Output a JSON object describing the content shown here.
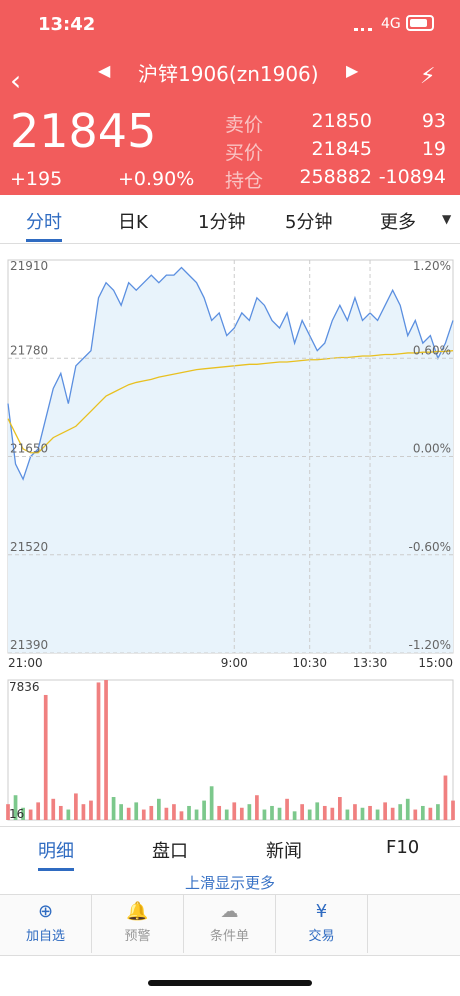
{
  "status_bar": {
    "time": "13:42",
    "network": "4G"
  },
  "header": {
    "title": "沪锌1906(zn1906)"
  },
  "quote": {
    "price": "21845",
    "change": "+195",
    "change_pct": "+0.90%",
    "rows": [
      [
        "卖价",
        "21850",
        "93"
      ],
      [
        "买价",
        "21845",
        "19"
      ],
      [
        "持仓",
        "258882",
        "-10894"
      ]
    ]
  },
  "tabs": {
    "items": [
      "分时",
      "日K",
      "1分钟",
      "5分钟",
      "更多"
    ],
    "active": 0
  },
  "chart_data": [
    {
      "type": "line",
      "xlim": [
        0,
        59
      ],
      "xticks": [
        {
          "value": 0,
          "label": "21:00"
        },
        {
          "value": 30,
          "label": "9:00"
        },
        {
          "value": 40,
          "label": "10:30"
        },
        {
          "value": 48,
          "label": "13:30"
        },
        {
          "value": 59,
          "label": "15:00"
        }
      ],
      "ylim": [
        21390,
        21910
      ],
      "yticks": [
        21910,
        21780,
        21650,
        21520,
        21390
      ],
      "y2lim": [
        -1.2,
        1.2
      ],
      "y2ticks": [
        {
          "value": 1.2,
          "label": "1.20%"
        },
        {
          "value": 0.6,
          "label": "0.60%"
        },
        {
          "value": 0,
          "label": "0.00%"
        },
        {
          "value": -0.6,
          "label": "-0.60%"
        },
        {
          "value": -1.2,
          "label": "-1.20%"
        }
      ],
      "grid": true,
      "series": [
        {
          "color": "#5b8fe0",
          "area": "#e8f3fb",
          "values": [
            21720,
            21640,
            21620,
            21650,
            21660,
            21700,
            21740,
            21760,
            21720,
            21770,
            21780,
            21790,
            21860,
            21880,
            21870,
            21850,
            21880,
            21870,
            21880,
            21890,
            21880,
            21890,
            21890,
            21900,
            21890,
            21880,
            21860,
            21830,
            21840,
            21810,
            21820,
            21840,
            21830,
            21860,
            21850,
            21830,
            21820,
            21840,
            21800,
            21830,
            21810,
            21790,
            21800,
            21830,
            21850,
            21830,
            21860,
            21830,
            21840,
            21830,
            21850,
            21870,
            21850,
            21810,
            21830,
            21800,
            21810,
            21780,
            21800,
            21830
          ]
        },
        {
          "color": "#e8c020",
          "values": [
            21700,
            21680,
            21660,
            21655,
            21655,
            21665,
            21675,
            21680,
            21685,
            21690,
            21700,
            21710,
            21720,
            21730,
            21735,
            21740,
            21745,
            21748,
            21750,
            21752,
            21755,
            21757,
            21759,
            21761,
            21763,
            21765,
            21766,
            21767,
            21768,
            21769,
            21770,
            21771,
            21772,
            21772,
            21773,
            21774,
            21775,
            21775,
            21776,
            21777,
            21778,
            21778,
            21779,
            21780,
            21781,
            21781,
            21782,
            21783,
            21783,
            21784,
            21785,
            21785,
            21786,
            21787,
            21787,
            21788,
            21788,
            21789,
            21789,
            21790
          ]
        }
      ]
    },
    {
      "type": "bar",
      "xlim": [
        0,
        59
      ],
      "ylim": [
        16,
        7836
      ],
      "yticks": [
        7836,
        16
      ],
      "up_color": "#f08080",
      "down_color": "#7cc88c",
      "values": [
        900,
        1400,
        700,
        600,
        1000,
        7000,
        1200,
        800,
        600,
        1500,
        900,
        1100,
        7700,
        7836,
        1300,
        900,
        700,
        1000,
        600,
        800,
        1200,
        700,
        900,
        500,
        800,
        600,
        1100,
        1900,
        800,
        600,
        1000,
        700,
        900,
        1400,
        600,
        800,
        700,
        1200,
        500,
        900,
        600,
        1000,
        800,
        700,
        1300,
        600,
        900,
        700,
        800,
        600,
        1000,
        700,
        900,
        1200,
        600,
        800,
        700,
        900,
        2500,
        1100
      ]
    }
  ],
  "bottom_tabs": {
    "items": [
      "明细",
      "盘口",
      "新闻",
      "F10"
    ],
    "active": 0
  },
  "more_hint": "上滑显示更多",
  "toolbar": [
    "加自选",
    "预警",
    "条件单",
    "交易"
  ]
}
